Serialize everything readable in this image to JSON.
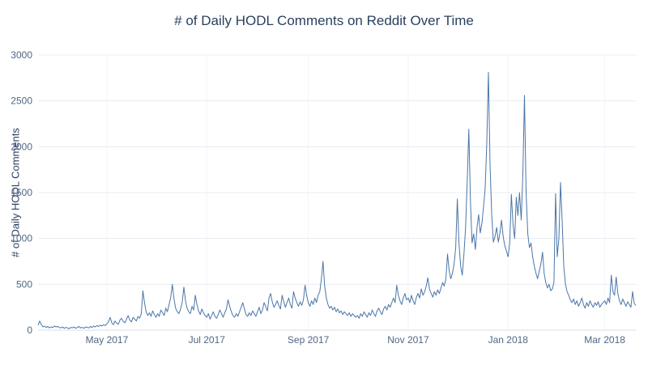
{
  "chart": {
    "title": "# of Daily HODL Comments on Reddit Over Time",
    "y_axis_label": "# of Daily HODL Comments"
  },
  "chart_data": {
    "type": "line",
    "title": "# of Daily HODL Comments on Reddit Over Time",
    "xlabel": "",
    "ylabel": "# of Daily HODL Comments",
    "legend": "none",
    "grid": "on",
    "line_color": "#4a76a8",
    "grid_color": "#e8ecf3",
    "zero_line_color": "#d7dce6",
    "ylim": [
      0,
      3000
    ],
    "y_ticks": [
      0,
      500,
      1000,
      1500,
      2000,
      2500,
      3000
    ],
    "start_date": "2017-03-20",
    "x_ticks": [
      {
        "label": "May 2017",
        "date": "2017-05-01"
      },
      {
        "label": "Jul 2017",
        "date": "2017-07-01"
      },
      {
        "label": "Sep 2017",
        "date": "2017-09-01"
      },
      {
        "label": "Nov 2017",
        "date": "2017-11-01"
      },
      {
        "label": "Jan 2018",
        "date": "2018-01-01"
      },
      {
        "label": "Mar 2018",
        "date": "2018-03-01"
      }
    ],
    "values": [
      55,
      100,
      60,
      35,
      45,
      30,
      40,
      25,
      35,
      30,
      45,
      35,
      40,
      30,
      25,
      35,
      20,
      30,
      25,
      15,
      30,
      25,
      35,
      20,
      30,
      40,
      25,
      30,
      20,
      35,
      30,
      25,
      40,
      30,
      45,
      35,
      50,
      40,
      55,
      45,
      60,
      50,
      70,
      90,
      140,
      80,
      60,
      100,
      75,
      65,
      110,
      130,
      95,
      80,
      120,
      160,
      110,
      90,
      140,
      120,
      100,
      150,
      130,
      180,
      430,
      300,
      200,
      160,
      190,
      150,
      210,
      170,
      140,
      180,
      150,
      220,
      190,
      160,
      240,
      200,
      280,
      360,
      500,
      340,
      240,
      200,
      180,
      230,
      300,
      470,
      320,
      240,
      200,
      180,
      260,
      220,
      380,
      280,
      210,
      170,
      230,
      190,
      160,
      140,
      180,
      120,
      160,
      200,
      150,
      130,
      170,
      220,
      180,
      140,
      190,
      230,
      330,
      260,
      200,
      160,
      140,
      180,
      150,
      200,
      250,
      300,
      230,
      170,
      150,
      190,
      160,
      210,
      180,
      150,
      200,
      250,
      180,
      220,
      300,
      260,
      210,
      350,
      400,
      310,
      250,
      280,
      320,
      270,
      230,
      380,
      310,
      250,
      300,
      350,
      280,
      240,
      420,
      350,
      300,
      260,
      310,
      270,
      330,
      490,
      380,
      300,
      260,
      320,
      280,
      350,
      300,
      380,
      420,
      560,
      750,
      480,
      350,
      280,
      240,
      260,
      220,
      250,
      200,
      230,
      190,
      210,
      170,
      200,
      180,
      160,
      190,
      150,
      180,
      160,
      140,
      160,
      130,
      180,
      150,
      200,
      170,
      140,
      190,
      160,
      220,
      180,
      150,
      210,
      240,
      200,
      170,
      230,
      260,
      220,
      280,
      250,
      300,
      350,
      300,
      490,
      380,
      320,
      280,
      350,
      400,
      330,
      350,
      300,
      380,
      320,
      280,
      360,
      400,
      350,
      450,
      380,
      420,
      480,
      570,
      450,
      400,
      360,
      420,
      380,
      440,
      400,
      460,
      520,
      480,
      560,
      830,
      650,
      560,
      620,
      720,
      900,
      1430,
      950,
      700,
      600,
      820,
      1100,
      1600,
      2190,
      1400,
      950,
      1050,
      880,
      1120,
      1260,
      1060,
      1160,
      1350,
      1550,
      2050,
      2810,
      1800,
      1250,
      960,
      1020,
      1120,
      960,
      1060,
      1200,
      1020,
      920,
      860,
      800,
      950,
      1480,
      1150,
      1000,
      1450,
      1250,
      1500,
      1200,
      1700,
      2560,
      1500,
      1050,
      900,
      950,
      800,
      700,
      620,
      560,
      640,
      720,
      850,
      620,
      520,
      460,
      500,
      430,
      450,
      520,
      1490,
      800,
      1000,
      1610,
      1200,
      700,
      500,
      420,
      380,
      330,
      300,
      340,
      280,
      320,
      260,
      300,
      350,
      280,
      240,
      300,
      260,
      320,
      280,
      250,
      300,
      270,
      310,
      250,
      280,
      300,
      320,
      280,
      350,
      300,
      600,
      420,
      380,
      580,
      400,
      320,
      280,
      340,
      300,
      260,
      310,
      280,
      250,
      420,
      290,
      270
    ]
  }
}
